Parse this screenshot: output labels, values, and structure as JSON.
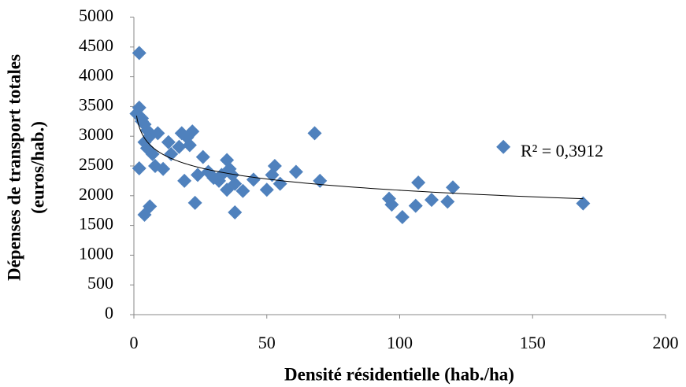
{
  "chart_data": {
    "type": "scatter",
    "xlabel": "Densité résidentielle (hab./ha)",
    "ylabel": [
      "Dépenses de transport totales",
      "(euros/hab.)"
    ],
    "annotation": "R² = 0,3912",
    "trendline": "log",
    "series": [
      {
        "color": "#4f81bd",
        "x": [
          2,
          2,
          1,
          3,
          4,
          5,
          6,
          4,
          5,
          7,
          9,
          2,
          8,
          11,
          13,
          14,
          18,
          22,
          20,
          21,
          26,
          19,
          24,
          28,
          30,
          32,
          35,
          36,
          37,
          35,
          38,
          41,
          45,
          50,
          52,
          53,
          55,
          61,
          68,
          70,
          23,
          38,
          4,
          6,
          96,
          97,
          101,
          106,
          107,
          112,
          118,
          120,
          169,
          17,
          3,
          33,
          139
        ],
        "values": [
          4400,
          3480,
          3380,
          3250,
          3200,
          3100,
          3000,
          2900,
          2800,
          2700,
          3050,
          2460,
          2500,
          2450,
          2900,
          2700,
          3050,
          3080,
          2980,
          2850,
          2650,
          2250,
          2350,
          2400,
          2300,
          2250,
          2600,
          2450,
          2350,
          2100,
          2200,
          2080,
          2270,
          2100,
          2350,
          2500,
          2200,
          2400,
          3050,
          2250,
          1880,
          1720,
          1680,
          1820,
          1950,
          1850,
          1640,
          1830,
          2220,
          1930,
          1900,
          2140,
          1870,
          2820,
          3300,
          2350,
          2820
        ]
      }
    ],
    "xlim": [
      0,
      200
    ],
    "xticks": [
      0,
      50,
      100,
      150,
      200
    ],
    "ylim": [
      0,
      5000
    ],
    "yticks": [
      0,
      500,
      1000,
      1500,
      2000,
      2500,
      3000,
      3500,
      4000,
      4500,
      5000
    ],
    "grid": false
  }
}
